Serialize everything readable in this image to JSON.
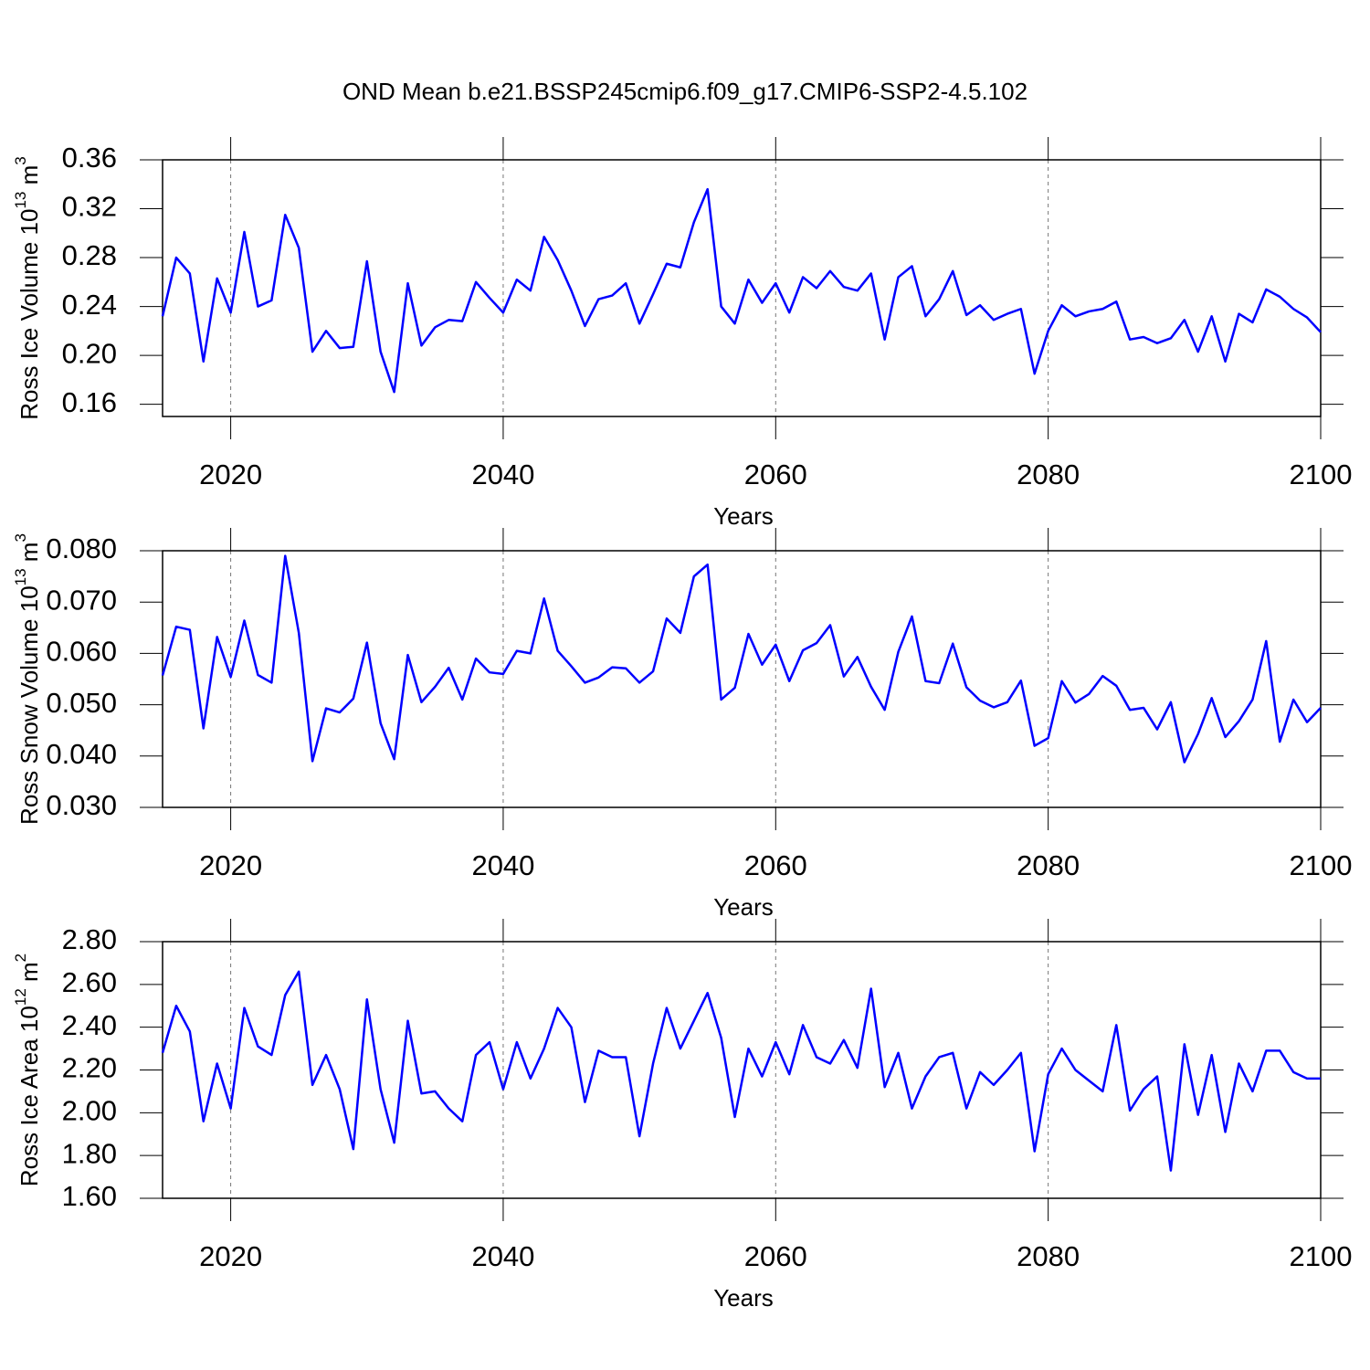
{
  "chart_data": [
    {
      "type": "line",
      "title": "OND Mean b.e21.BSSP245cmip6.f09_g17.CMIP6-SSP2-4.5.102",
      "xlabel": "Years",
      "ylabel": [
        "Ross Ice Volume 10",
        "13",
        " m",
        "3"
      ],
      "x": [
        2015,
        2016,
        2017,
        2018,
        2019,
        2020,
        2021,
        2022,
        2023,
        2024,
        2025,
        2026,
        2027,
        2028,
        2029,
        2030,
        2031,
        2032,
        2033,
        2034,
        2035,
        2036,
        2037,
        2038,
        2039,
        2040,
        2041,
        2042,
        2043,
        2044,
        2045,
        2046,
        2047,
        2048,
        2049,
        2050,
        2051,
        2052,
        2053,
        2054,
        2055,
        2056,
        2057,
        2058,
        2059,
        2060,
        2061,
        2062,
        2063,
        2064,
        2065,
        2066,
        2067,
        2068,
        2069,
        2070,
        2071,
        2072,
        2073,
        2074,
        2075,
        2076,
        2077,
        2078,
        2079,
        2080,
        2081,
        2082,
        2083,
        2084,
        2085,
        2086,
        2087,
        2088,
        2089,
        2090,
        2091,
        2092,
        2093,
        2094,
        2095,
        2096,
        2097,
        2098,
        2099,
        2100
      ],
      "series": [
        {
          "color": "#0000ff",
          "values": [
            0.232,
            0.28,
            0.267,
            0.195,
            0.263,
            0.235,
            0.301,
            0.24,
            0.245,
            0.315,
            0.288,
            0.203,
            0.22,
            0.206,
            0.207,
            0.277,
            0.203,
            0.17,
            0.259,
            0.208,
            0.223,
            0.229,
            0.228,
            0.26,
            0.247,
            0.235,
            0.262,
            0.253,
            0.297,
            0.278,
            0.253,
            0.224,
            0.246,
            0.249,
            0.259,
            0.226,
            0.25,
            0.275,
            0.272,
            0.309,
            0.336,
            0.24,
            0.226,
            0.262,
            0.243,
            0.259,
            0.235,
            0.264,
            0.255,
            0.269,
            0.256,
            0.253,
            0.267,
            0.213,
            0.264,
            0.273,
            0.232,
            0.246,
            0.269,
            0.233,
            0.241,
            0.229,
            0.234,
            0.238,
            0.185,
            0.22,
            0.241,
            0.232,
            0.236,
            0.238,
            0.244,
            0.213,
            0.215,
            0.21,
            0.214,
            0.229,
            0.203,
            0.232,
            0.195,
            0.234,
            0.227,
            0.254,
            0.248,
            0.238,
            0.231,
            0.219
          ]
        }
      ],
      "xlim": [
        2015,
        2100
      ],
      "xticks": [
        2020,
        2040,
        2060,
        2080,
        2100
      ],
      "ylim": [
        0.15,
        0.36
      ],
      "yticks": [
        0.16,
        {
          "value": 0.2,
          "label": "0.20"
        },
        0.24,
        0.28,
        0.32,
        0.36
      ],
      "xgrid": true
    },
    {
      "type": "line",
      "xlabel": "Years",
      "ylabel": [
        "Ross Snow Volume 10",
        "13",
        " m",
        "3"
      ],
      "x": [
        2015,
        2016,
        2017,
        2018,
        2019,
        2020,
        2021,
        2022,
        2023,
        2024,
        2025,
        2026,
        2027,
        2028,
        2029,
        2030,
        2031,
        2032,
        2033,
        2034,
        2035,
        2036,
        2037,
        2038,
        2039,
        2040,
        2041,
        2042,
        2043,
        2044,
        2045,
        2046,
        2047,
        2048,
        2049,
        2050,
        2051,
        2052,
        2053,
        2054,
        2055,
        2056,
        2057,
        2058,
        2059,
        2060,
        2061,
        2062,
        2063,
        2064,
        2065,
        2066,
        2067,
        2068,
        2069,
        2070,
        2071,
        2072,
        2073,
        2074,
        2075,
        2076,
        2077,
        2078,
        2079,
        2080,
        2081,
        2082,
        2083,
        2084,
        2085,
        2086,
        2087,
        2088,
        2089,
        2090,
        2091,
        2092,
        2093,
        2094,
        2095,
        2096,
        2097,
        2098,
        2099,
        2100
      ],
      "series": [
        {
          "color": "#0000ff",
          "values": [
            0.0557,
            0.0652,
            0.0646,
            0.0454,
            0.0632,
            0.0554,
            0.0664,
            0.0558,
            0.0543,
            0.079,
            0.064,
            0.039,
            0.0493,
            0.0485,
            0.0512,
            0.0621,
            0.0464,
            0.0394,
            0.0597,
            0.0505,
            0.0535,
            0.0572,
            0.051,
            0.059,
            0.0563,
            0.056,
            0.0605,
            0.06,
            0.0707,
            0.0605,
            0.0575,
            0.0543,
            0.0553,
            0.0573,
            0.0571,
            0.0543,
            0.0565,
            0.0668,
            0.064,
            0.075,
            0.0773,
            0.051,
            0.0533,
            0.0638,
            0.0578,
            0.0617,
            0.0546,
            0.0606,
            0.062,
            0.0655,
            0.0555,
            0.0593,
            0.0535,
            0.049,
            0.0603,
            0.0672,
            0.0546,
            0.0542,
            0.0619,
            0.0534,
            0.0508,
            0.0495,
            0.0505,
            0.0547,
            0.042,
            0.0435,
            0.0546,
            0.0504,
            0.0521,
            0.0556,
            0.0537,
            0.049,
            0.0494,
            0.0452,
            0.0505,
            0.0388,
            0.0443,
            0.0513,
            0.0437,
            0.0468,
            0.051,
            0.0624,
            0.0428,
            0.051,
            0.0466,
            0.0494
          ]
        }
      ],
      "xlim": [
        2015,
        2100
      ],
      "xticks": [
        2020,
        2040,
        2060,
        2080,
        2100
      ],
      "ylim": [
        0.03,
        0.08
      ],
      "yticks": [
        {
          "value": 0.03,
          "label": "0.030"
        },
        {
          "value": 0.04,
          "label": "0.040"
        },
        {
          "value": 0.05,
          "label": "0.050"
        },
        {
          "value": 0.06,
          "label": "0.060"
        },
        {
          "value": 0.07,
          "label": "0.070"
        },
        {
          "value": 0.08,
          "label": "0.080"
        }
      ],
      "xgrid": true
    },
    {
      "type": "line",
      "xlabel": "Years",
      "ylabel": [
        "Ross Ice Area 10",
        "12",
        " m",
        "2"
      ],
      "x": [
        2015,
        2016,
        2017,
        2018,
        2019,
        2020,
        2021,
        2022,
        2023,
        2024,
        2025,
        2026,
        2027,
        2028,
        2029,
        2030,
        2031,
        2032,
        2033,
        2034,
        2035,
        2036,
        2037,
        2038,
        2039,
        2040,
        2041,
        2042,
        2043,
        2044,
        2045,
        2046,
        2047,
        2048,
        2049,
        2050,
        2051,
        2052,
        2053,
        2054,
        2055,
        2056,
        2057,
        2058,
        2059,
        2060,
        2061,
        2062,
        2063,
        2064,
        2065,
        2066,
        2067,
        2068,
        2069,
        2070,
        2071,
        2072,
        2073,
        2074,
        2075,
        2076,
        2077,
        2078,
        2079,
        2080,
        2081,
        2082,
        2083,
        2084,
        2085,
        2086,
        2087,
        2088,
        2089,
        2090,
        2091,
        2092,
        2093,
        2094,
        2095,
        2096,
        2097,
        2098,
        2099,
        2100
      ],
      "series": [
        {
          "color": "#0000ff",
          "values": [
            2.28,
            2.5,
            2.38,
            1.96,
            2.23,
            2.02,
            2.49,
            2.31,
            2.27,
            2.55,
            2.66,
            2.13,
            2.27,
            2.11,
            1.83,
            2.53,
            2.11,
            1.86,
            2.43,
            2.09,
            2.1,
            2.02,
            1.96,
            2.27,
            2.33,
            2.11,
            2.33,
            2.16,
            2.3,
            2.49,
            2.4,
            2.05,
            2.29,
            2.26,
            2.26,
            1.89,
            2.23,
            2.49,
            2.3,
            2.43,
            2.56,
            2.35,
            1.98,
            2.3,
            2.17,
            2.33,
            2.18,
            2.41,
            2.26,
            2.23,
            2.34,
            2.21,
            2.58,
            2.12,
            2.28,
            2.02,
            2.17,
            2.26,
            2.28,
            2.02,
            2.19,
            2.13,
            2.2,
            2.28,
            1.82,
            2.18,
            2.3,
            2.2,
            2.15,
            2.1,
            2.41,
            2.01,
            2.11,
            2.17,
            1.73,
            2.32,
            1.99,
            2.27,
            1.91,
            2.23,
            2.1,
            2.29,
            2.29,
            2.19,
            2.16,
            2.16
          ]
        }
      ],
      "xlim": [
        2015,
        2100
      ],
      "xticks": [
        2020,
        2040,
        2060,
        2080,
        2100
      ],
      "ylim": [
        1.6,
        2.8
      ],
      "yticks": [
        {
          "value": 1.6,
          "label": "1.60"
        },
        {
          "value": 1.8,
          "label": "1.80"
        },
        {
          "value": 2.0,
          "label": "2.00"
        },
        {
          "value": 2.2,
          "label": "2.20"
        },
        {
          "value": 2.4,
          "label": "2.40"
        },
        {
          "value": 2.6,
          "label": "2.60"
        },
        {
          "value": 2.8,
          "label": "2.80"
        }
      ],
      "xgrid": true
    }
  ]
}
